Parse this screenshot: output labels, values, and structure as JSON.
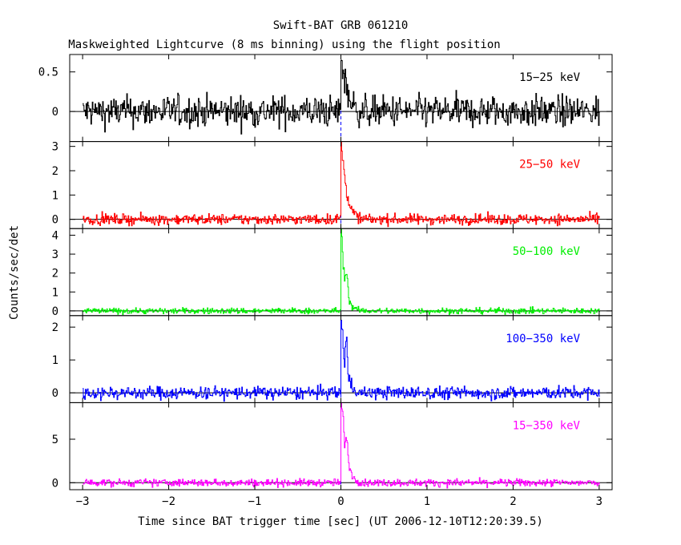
{
  "chart_data": {
    "type": "line",
    "title": "Swift-BAT GRB 061210",
    "subtitle": "Maskweighted Lightcurve (8 ms binning) using the flight position",
    "xlabel": "Time since BAT trigger time [sec] (UT 2006-12-10T12:20:39.5)",
    "ylabel": "Counts/sec/det",
    "xlim": [
      -3.15,
      3.15
    ],
    "x_ticks": [
      -3,
      -2,
      -1,
      0,
      1,
      2,
      3
    ],
    "x_tick_labels": [
      "−3",
      "−2",
      "−1",
      "0",
      "1",
      "2",
      "3"
    ],
    "trigger_time": 0,
    "bin_size_sec": 0.008,
    "panels": [
      {
        "name": "15−25 keV",
        "color": "#000000",
        "ylim": [
          -0.38,
          0.72
        ],
        "y_ticks": [
          0,
          0.5
        ],
        "y_tick_labels": [
          "0",
          "0.5"
        ],
        "noise_sigma": 0.1,
        "peaks": [
          {
            "x": 0.0,
            "y": 0.72
          },
          {
            "x": 0.02,
            "y": 0.52
          },
          {
            "x": 0.05,
            "y": 0.38
          },
          {
            "x": 0.1,
            "y": 0.15
          }
        ]
      },
      {
        "name": "25−50 keV",
        "color": "#ff0000",
        "ylim": [
          -0.38,
          3.2
        ],
        "y_ticks": [
          0,
          1,
          2,
          3
        ],
        "y_tick_labels": [
          "0",
          "1",
          "2",
          "3"
        ],
        "noise_sigma": 0.11,
        "peaks": [
          {
            "x": 0.0,
            "y": 3.2
          },
          {
            "x": 0.02,
            "y": 2.4
          },
          {
            "x": 0.04,
            "y": 1.7
          },
          {
            "x": 0.07,
            "y": 1.1
          },
          {
            "x": 0.1,
            "y": 0.5
          },
          {
            "x": 0.16,
            "y": 0.2
          }
        ]
      },
      {
        "name": "50−100 keV",
        "color": "#00ee00",
        "ylim": [
          -0.25,
          4.35
        ],
        "y_ticks": [
          0,
          1,
          2,
          3,
          4
        ],
        "y_tick_labels": [
          "0",
          "1",
          "2",
          "3",
          "4"
        ],
        "noise_sigma": 0.08,
        "peaks": [
          {
            "x": 0.0,
            "y": 4.3
          },
          {
            "x": 0.02,
            "y": 2.8
          },
          {
            "x": 0.04,
            "y": 1.5
          },
          {
            "x": 0.06,
            "y": 2.4
          },
          {
            "x": 0.09,
            "y": 0.6
          },
          {
            "x": 0.13,
            "y": 0.2
          }
        ]
      },
      {
        "name": "100−350 keV",
        "color": "#0000ff",
        "ylim": [
          -0.3,
          2.35
        ],
        "y_ticks": [
          0,
          1,
          2
        ],
        "y_tick_labels": [
          "0",
          "1",
          "2"
        ],
        "noise_sigma": 0.1,
        "peaks": [
          {
            "x": 0.0,
            "y": 2.3
          },
          {
            "x": 0.02,
            "y": 1.5
          },
          {
            "x": 0.04,
            "y": 0.8
          },
          {
            "x": 0.06,
            "y": 1.9
          },
          {
            "x": 0.08,
            "y": 0.5
          }
        ]
      },
      {
        "name": "15−350 keV",
        "color": "#ff00ff",
        "ylim": [
          -0.8,
          9.2
        ],
        "y_ticks": [
          0,
          5
        ],
        "y_tick_labels": [
          "0",
          "5"
        ],
        "noise_sigma": 0.22,
        "peaks": [
          {
            "x": 0.0,
            "y": 9.2
          },
          {
            "x": 0.02,
            "y": 7.5
          },
          {
            "x": 0.04,
            "y": 4.5
          },
          {
            "x": 0.06,
            "y": 5.8
          },
          {
            "x": 0.09,
            "y": 2.0
          },
          {
            "x": 0.14,
            "y": 0.6
          }
        ]
      }
    ]
  }
}
